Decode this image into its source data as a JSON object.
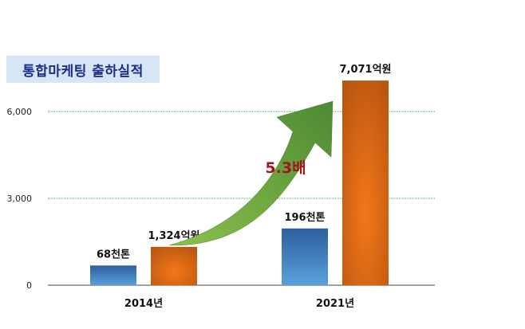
{
  "chart_data": {
    "type": "bar",
    "title": "통합마케팅 출하실적",
    "categories": [
      "2014년",
      "2021년"
    ],
    "series": [
      {
        "color": "#3f7fc0",
        "values": [
          680,
          1960
        ],
        "labels": [
          "68천톤",
          "196천톤"
        ]
      },
      {
        "color": "#e0640f",
        "values": [
          1324,
          7071
        ],
        "labels": [
          "1,324억원",
          "7,071억원"
        ]
      }
    ],
    "ylim": [
      0,
      7000
    ],
    "yticks": [
      0,
      3000,
      6000
    ],
    "ytick_labels": [
      "0",
      "3,000",
      "6,000"
    ],
    "grid": true,
    "gridline_color": "#39a84a",
    "annotation": {
      "text": "5.3배",
      "color": "#a3141c",
      "arrow_color": "#5f9c3a"
    }
  }
}
